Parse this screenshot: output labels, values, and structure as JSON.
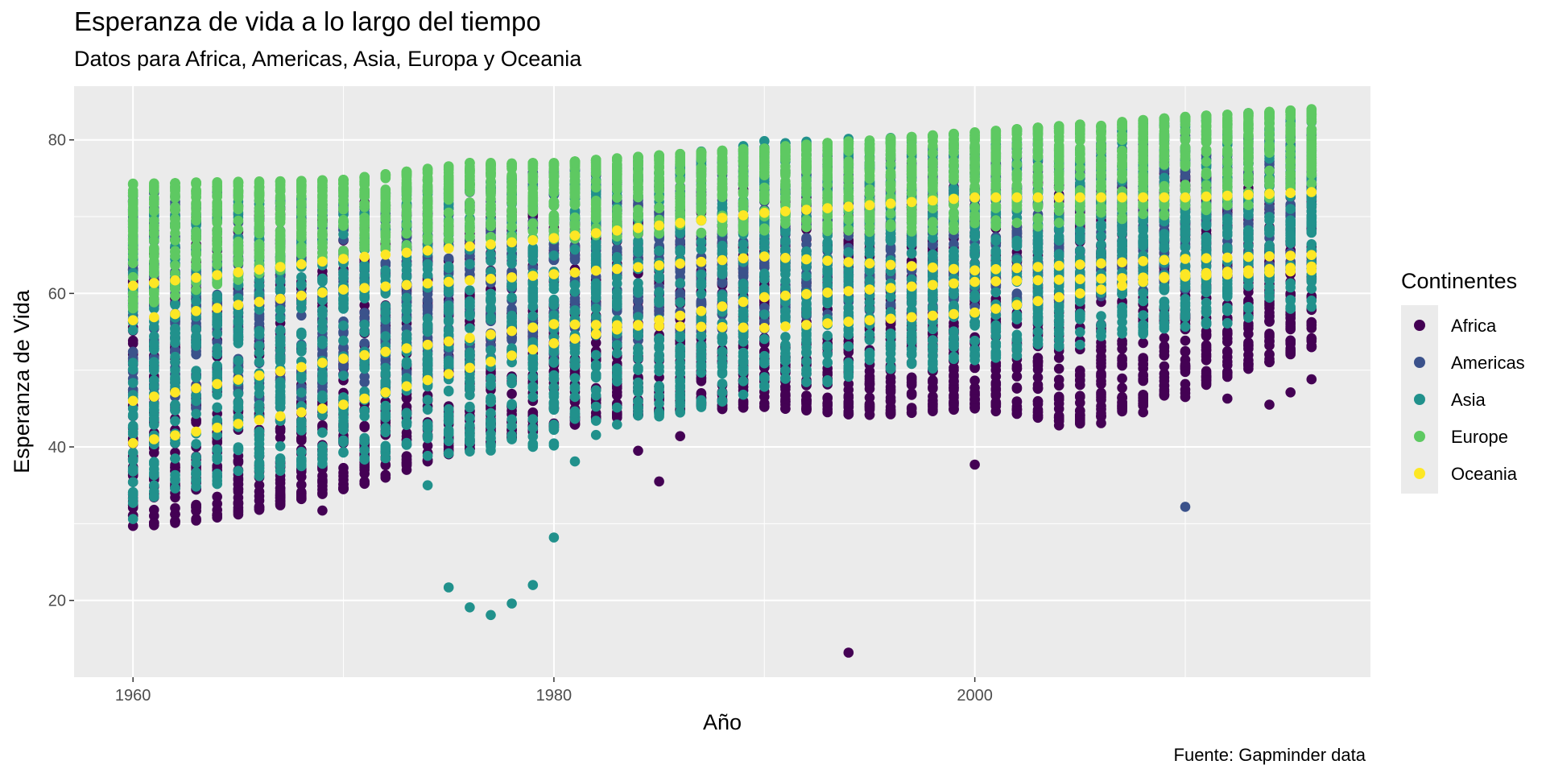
{
  "chart_data": {
    "type": "scatter",
    "title": "Esperanza de vida a lo largo del tiempo",
    "subtitle": "Datos para Africa, Americas, Asia, Europa y Oceania",
    "caption": "Fuente: Gapminder data",
    "xlabel": "Año",
    "ylabel": "Esperanza de Vida",
    "xlim": [
      1957.2,
      2018.8
    ],
    "ylim": [
      10,
      87
    ],
    "x_ticks": [
      1960,
      1980,
      2000
    ],
    "y_ticks": [
      20,
      40,
      60,
      80
    ],
    "grid": true,
    "legend": {
      "title": "Continentes",
      "position": "right"
    },
    "series": [
      {
        "name": "Africa",
        "color": "#440154",
        "ranges": [
          {
            "x": 1960,
            "min": 29.7,
            "max": 71
          },
          {
            "x": 1965,
            "min": 31.2,
            "max": 71
          },
          {
            "x": 1970,
            "min": 34.5,
            "max": 72
          },
          {
            "x": 1975,
            "min": 39,
            "max": 72
          },
          {
            "x": 1980,
            "min": 42.5,
            "max": 72
          },
          {
            "x": 1985,
            "min": 44.5,
            "max": 73
          },
          {
            "x": 1990,
            "min": 45.2,
            "max": 74
          },
          {
            "x": 1995,
            "min": 44,
            "max": 74
          },
          {
            "x": 2000,
            "min": 45,
            "max": 74
          },
          {
            "x": 2005,
            "min": 43,
            "max": 75
          },
          {
            "x": 2010,
            "min": 47,
            "max": 76
          },
          {
            "x": 2016,
            "min": 53,
            "max": 77
          }
        ],
        "lower_outliers": [
          {
            "x": 1960,
            "y": 29.7
          },
          {
            "x": 1961,
            "y": 29.8
          },
          {
            "x": 1962,
            "y": 30.1
          },
          {
            "x": 1963,
            "y": 30.4
          },
          {
            "x": 1964,
            "y": 30.8
          },
          {
            "x": 1965,
            "y": 31.2
          },
          {
            "x": 1966,
            "y": 31.8
          },
          {
            "x": 1967,
            "y": 32.4
          },
          {
            "x": 1968,
            "y": 33.2
          },
          {
            "x": 1969,
            "y": 31.7
          },
          {
            "x": 1970,
            "y": 34.5
          },
          {
            "x": 1971,
            "y": 35.2
          },
          {
            "x": 1972,
            "y": 36
          },
          {
            "x": 1973,
            "y": 37
          },
          {
            "x": 1984,
            "y": 39.5
          },
          {
            "x": 1985,
            "y": 35.5
          },
          {
            "x": 1986,
            "y": 41.4
          },
          {
            "x": 1994,
            "y": 13.2
          },
          {
            "x": 2000,
            "y": 37.7
          },
          {
            "x": 2004,
            "y": 42.8
          },
          {
            "x": 2006,
            "y": 43.1
          },
          {
            "x": 2008,
            "y": 44.5
          },
          {
            "x": 2010,
            "y": 46.5
          },
          {
            "x": 2012,
            "y": 46.3
          },
          {
            "x": 2014,
            "y": 45.5
          },
          {
            "x": 2015,
            "y": 47.1
          },
          {
            "x": 2016,
            "y": 48.8
          }
        ]
      },
      {
        "name": "Americas",
        "color": "#3b528b",
        "ranges": [
          {
            "x": 1960,
            "min": 44,
            "max": 73
          },
          {
            "x": 1970,
            "min": 47,
            "max": 74
          },
          {
            "x": 1980,
            "min": 52,
            "max": 76
          },
          {
            "x": 1990,
            "min": 55,
            "max": 78
          },
          {
            "x": 2000,
            "min": 58,
            "max": 79
          },
          {
            "x": 2010,
            "min": 60,
            "max": 81
          },
          {
            "x": 2016,
            "min": 63,
            "max": 82
          }
        ],
        "lower_outliers": [
          {
            "x": 2010,
            "y": 32.2
          }
        ]
      },
      {
        "name": "Asia",
        "color": "#21918c",
        "ranges": [
          {
            "x": 1960,
            "min": 33,
            "max": 71
          },
          {
            "x": 1970,
            "min": 38,
            "max": 73
          },
          {
            "x": 1980,
            "min": 40,
            "max": 76
          },
          {
            "x": 1990,
            "min": 47,
            "max": 80
          },
          {
            "x": 2000,
            "min": 51,
            "max": 81
          },
          {
            "x": 2010,
            "min": 55,
            "max": 83
          },
          {
            "x": 2016,
            "min": 58,
            "max": 84
          }
        ],
        "lower_outliers": [
          {
            "x": 1960,
            "y": 30.6
          },
          {
            "x": 1960,
            "y": 32.7
          },
          {
            "x": 1961,
            "y": 33.5
          },
          {
            "x": 1962,
            "y": 34.6
          },
          {
            "x": 1974,
            "y": 35
          },
          {
            "x": 1975,
            "y": 21.7
          },
          {
            "x": 1976,
            "y": 19.1
          },
          {
            "x": 1977,
            "y": 18.1
          },
          {
            "x": 1978,
            "y": 19.6
          },
          {
            "x": 1979,
            "y": 22
          },
          {
            "x": 1980,
            "y": 28.2
          },
          {
            "x": 1981,
            "y": 38.1
          }
        ]
      },
      {
        "name": "Europe",
        "color": "#5ec962",
        "ranges": [
          {
            "x": 1960,
            "min": 58,
            "max": 74.3
          },
          {
            "x": 1970,
            "min": 65,
            "max": 74.8
          },
          {
            "x": 1976,
            "min": 67,
            "max": 77
          },
          {
            "x": 1980,
            "min": 67,
            "max": 77
          },
          {
            "x": 1990,
            "min": 68,
            "max": 79
          },
          {
            "x": 2000,
            "min": 68,
            "max": 81
          },
          {
            "x": 2010,
            "min": 70,
            "max": 83
          },
          {
            "x": 2016,
            "min": 73,
            "max": 84
          }
        ],
        "lower_outliers": []
      },
      {
        "name": "Oceania",
        "color": "#fde725",
        "ranges": [],
        "lines": [
          {
            "points": [
              [
                1960,
                61
              ],
              [
                1970,
                64.5
              ],
              [
                1980,
                67.2
              ],
              [
                1990,
                70.5
              ],
              [
                2000,
                72.5
              ],
              [
                2010,
                72.5
              ],
              [
                2016,
                73.2
              ]
            ]
          },
          {
            "points": [
              [
                1960,
                56.5
              ],
              [
                1970,
                60.5
              ],
              [
                1980,
                62.5
              ],
              [
                1990,
                64.8
              ],
              [
                2000,
                63
              ],
              [
                2010,
                64.5
              ],
              [
                2016,
                65
              ]
            ]
          },
          {
            "points": [
              [
                1960,
                46
              ],
              [
                1970,
                51.5
              ],
              [
                1980,
                56
              ],
              [
                1990,
                55.5
              ],
              [
                2000,
                57.5
              ],
              [
                2010,
                62.5
              ],
              [
                2016,
                63.5
              ]
            ]
          },
          {
            "points": [
              [
                1960,
                40.5
              ],
              [
                1970,
                45.5
              ],
              [
                1980,
                53.5
              ],
              [
                1990,
                59.5
              ],
              [
                2000,
                61.5
              ],
              [
                2010,
                62.2
              ],
              [
                2016,
                63
              ]
            ]
          }
        ]
      }
    ]
  }
}
